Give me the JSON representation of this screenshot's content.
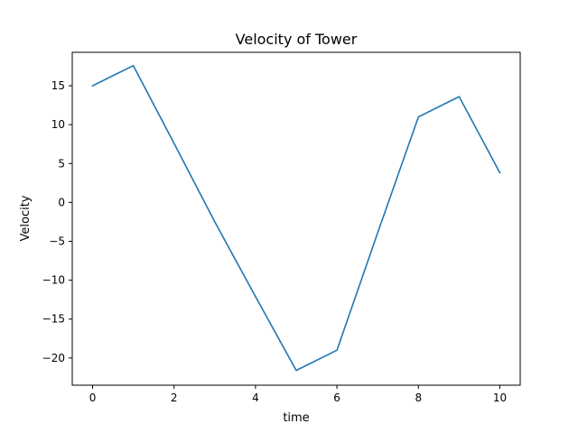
{
  "chart_data": {
    "type": "line",
    "title": "Velocity  of Tower",
    "xlabel": "time",
    "ylabel": "Velocity",
    "xlim": [
      -0.5,
      10.5
    ],
    "ylim": [
      -23.5,
      19.3
    ],
    "xticks": [
      0,
      2,
      4,
      6,
      8,
      10
    ],
    "yticks": [
      -20,
      -15,
      -10,
      -5,
      0,
      5,
      10,
      15
    ],
    "xtick_labels": [
      "0",
      "2",
      "4",
      "6",
      "8",
      "10"
    ],
    "ytick_labels": [
      "−20",
      "−15",
      "−10",
      "−5",
      "0",
      "5",
      "10",
      "15"
    ],
    "grid": false,
    "series": [
      {
        "color": "#1f77b4",
        "x": [
          0,
          1,
          2,
          3,
          4,
          5,
          6,
          7,
          8,
          9,
          10
        ],
        "y": [
          15.0,
          17.6,
          7.6,
          -2.5,
          -12.1,
          -21.6,
          -19.0,
          -3.9,
          11.0,
          13.6,
          3.8
        ]
      }
    ]
  }
}
